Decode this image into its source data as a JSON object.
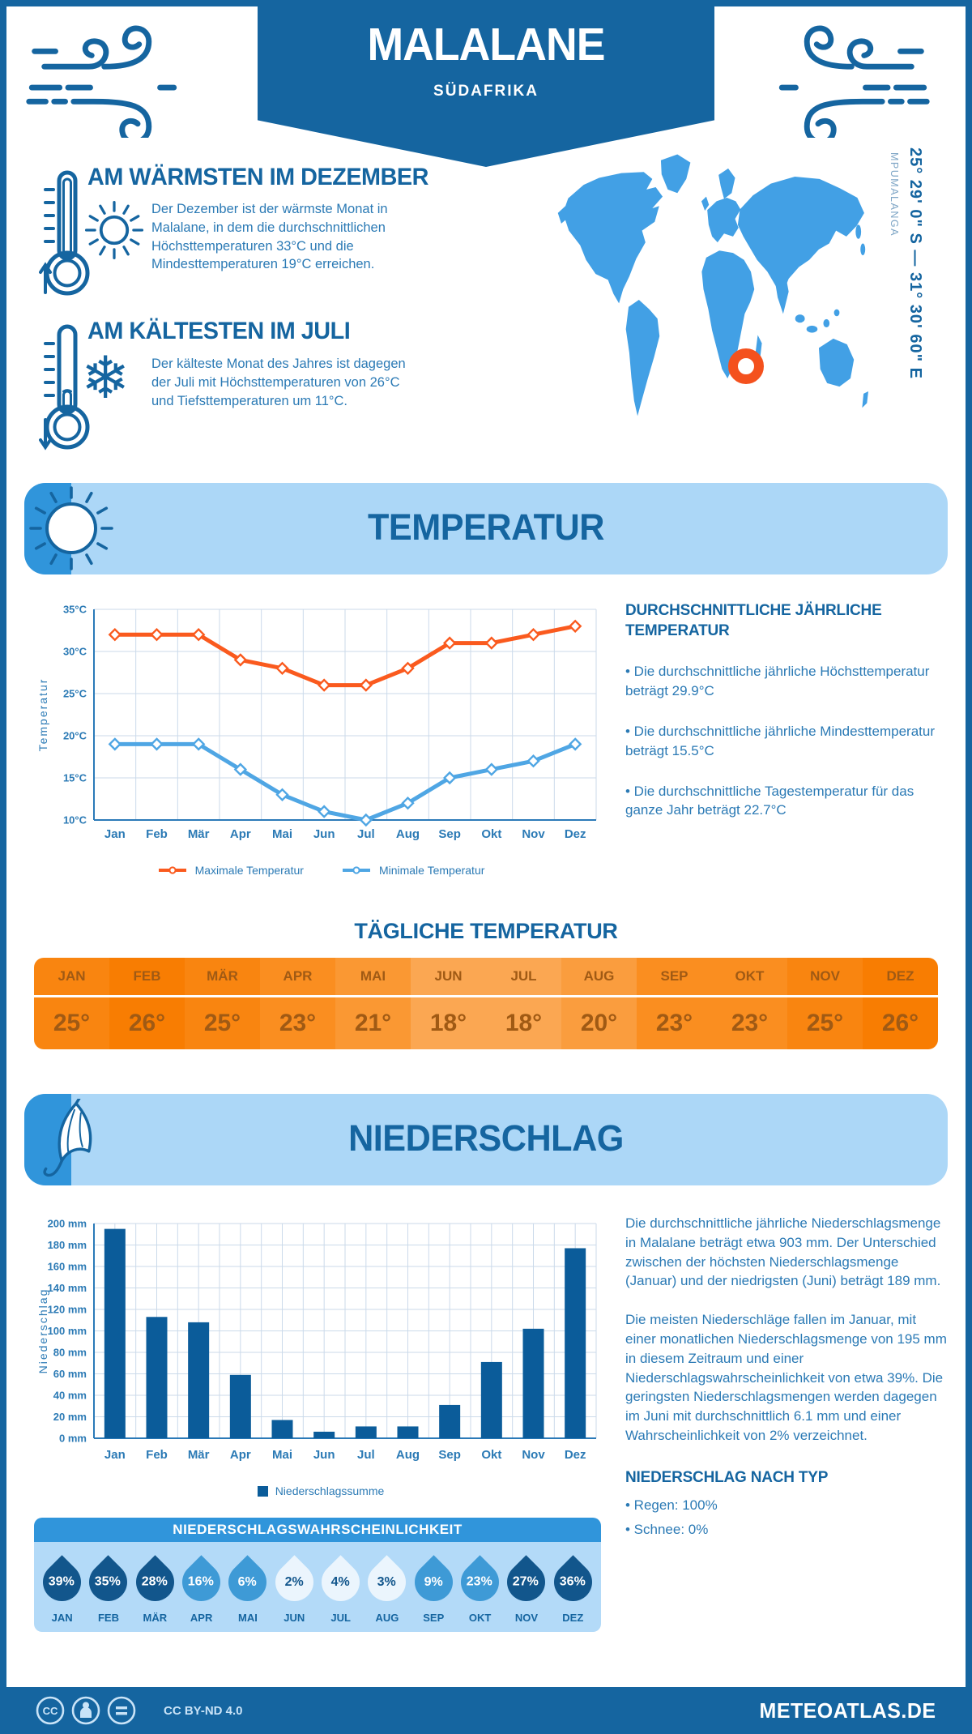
{
  "theme": {
    "navy": "#1565A0",
    "body_blue": "#2B7AB5",
    "light_blue": "#ACD7F7",
    "accent_blue": "#3095DB",
    "map_blue": "#42A0E5",
    "marker_orange": "#F4511E",
    "grid": "#CBDAEA",
    "axis": "#2B7AB8",
    "axis_text": "#2B7AB5",
    "max_line": "#FA5A1E",
    "min_line": "#4FA6E4",
    "bar_blue": "#0B5C9A"
  },
  "header": {
    "title": "MALALANE",
    "subtitle": "SÜDAFRIKA"
  },
  "location": {
    "coordinates": "25° 29' 0\" S — 31° 30' 60\" E",
    "region": "MPUMALANGA"
  },
  "icons": {
    "wind": "curly-wind-lines",
    "thermometer_up": "thermometer with up arrow",
    "thermometer_down": "thermometer with down arrow",
    "sun": "☀",
    "snowflake": "❄",
    "umbrella": "☂",
    "cc": "CC BY-ND badges"
  },
  "highlights": [
    {
      "title": "AM WÄRMSTEN IM DEZEMBER",
      "text": "Der Dezember ist der wärmste Monat in Malalane, in dem die durchschnittlichen Höchsttemperaturen 33°C und die Mindesttemperaturen 19°C erreichen."
    },
    {
      "title": "AM KÄLTESTEN IM JULI",
      "text": "Der kälteste Monat des Jahres ist dagegen der Juli mit Höchsttemperaturen von 26°C und Tiefsttemperaturen um 11°C."
    }
  ],
  "temperature": {
    "section_title": "TEMPERATUR",
    "stats_title": "DURCHSCHNITTLICHE JÄHRLICHE TEMPERATUR",
    "stats": [
      "• Die durchschnittliche jährliche Höchsttemperatur beträgt 29.9°C",
      "• Die durchschnittliche jährliche Mindesttemperatur beträgt 15.5°C",
      "• Die durchschnittliche Tagestemperatur für das ganze Jahr beträgt 22.7°C"
    ],
    "daily_title": "TÄGLICHE TEMPERATUR",
    "daily": {
      "months": [
        "JAN",
        "FEB",
        "MÄR",
        "APR",
        "MAI",
        "JUN",
        "JUL",
        "AUG",
        "SEP",
        "OKT",
        "NOV",
        "DEZ"
      ],
      "values": [
        "25°",
        "26°",
        "25°",
        "23°",
        "21°",
        "18°",
        "18°",
        "20°",
        "23°",
        "23°",
        "25°",
        "26°"
      ],
      "cell_colors": [
        "#F98510",
        "#F87D02",
        "#F98510",
        "#FA8E20",
        "#FA9833",
        "#FBA752",
        "#FBA752",
        "#FA9D3E",
        "#FA8E20",
        "#FA8E20",
        "#F98510",
        "#F87D02"
      ]
    }
  },
  "precipitation": {
    "section_title": "NIEDERSCHLAG",
    "paragraphs": [
      "Die durchschnittliche jährliche Niederschlagsmenge in Malalane beträgt etwa 903 mm. Der Unterschied zwischen der höchsten Niederschlagsmenge (Januar) und der niedrigsten (Juni) beträgt 189 mm.",
      "Die meisten Niederschläge fallen im Januar, mit einer monatlichen Niederschlagsmenge von 195 mm in diesem Zeitraum und einer Niederschlagswahrscheinlichkeit von etwa 39%. Die geringsten Niederschlagsmengen werden dagegen im Juni mit durchschnittlich 6.1 mm und einer Wahrscheinlichkeit von 2% verzeichnet."
    ],
    "type_title": "NIEDERSCHLAG NACH TYP",
    "types": [
      "• Regen: 100%",
      "• Schnee: 0%"
    ],
    "probability": {
      "title": "NIEDERSCHLAGSWAHRSCHEINLICHKEIT",
      "months": [
        "JAN",
        "FEB",
        "MÄR",
        "APR",
        "MAI",
        "JUN",
        "JUL",
        "AUG",
        "SEP",
        "OKT",
        "NOV",
        "DEZ"
      ],
      "values": [
        "39%",
        "35%",
        "28%",
        "16%",
        "6%",
        "2%",
        "4%",
        "3%",
        "9%",
        "23%",
        "27%",
        "36%"
      ],
      "drop_colors": [
        "#12568C",
        "#12568C",
        "#12568C",
        "#3E9AD6",
        "#3E9AD6",
        "#EBF5FD",
        "#EBF5FD",
        "#EBF5FD",
        "#3E9AD6",
        "#3E9AD6",
        "#12568C",
        "#12568C"
      ],
      "text_colors": [
        "#FFFFFF",
        "#FFFFFF",
        "#FFFFFF",
        "#FFFFFF",
        "#FFFFFF",
        "#12568C",
        "#12568C",
        "#12568C",
        "#FFFFFF",
        "#FFFFFF",
        "#FFFFFF",
        "#FFFFFF"
      ]
    }
  },
  "chart_data": [
    {
      "type": "line",
      "categories": [
        "Jan",
        "Feb",
        "Mär",
        "Apr",
        "Mai",
        "Jun",
        "Jul",
        "Aug",
        "Sep",
        "Okt",
        "Nov",
        "Dez"
      ],
      "series": [
        {
          "name": "Maximale Temperatur",
          "color": "#FA5A1E",
          "values": [
            32,
            32,
            32,
            29,
            28,
            26,
            26,
            28,
            31,
            31,
            32,
            33
          ]
        },
        {
          "name": "Minimale Temperatur",
          "color": "#4FA6E4",
          "values": [
            19,
            19,
            19,
            16,
            13,
            11,
            10,
            12,
            15,
            16,
            17,
            19
          ]
        }
      ],
      "xlabel": "",
      "ylabel": "Temperatur",
      "ylim": [
        10,
        35
      ],
      "ytick_step": 5,
      "ytick_suffix": "°C",
      "grid": true,
      "legend_position": "bottom",
      "marker": "diamond"
    },
    {
      "type": "bar",
      "categories": [
        "Jan",
        "Feb",
        "Mär",
        "Apr",
        "Mai",
        "Jun",
        "Jul",
        "Aug",
        "Sep",
        "Okt",
        "Nov",
        "Dez"
      ],
      "series": [
        {
          "name": "Niederschlagssumme",
          "color": "#0B5C9A",
          "values": [
            195,
            113,
            108,
            59,
            17,
            6.1,
            11,
            11,
            31,
            71,
            102,
            177
          ]
        }
      ],
      "xlabel": "",
      "ylabel": "Niederschlag",
      "ylim": [
        0,
        200
      ],
      "ytick_step": 20,
      "ytick_suffix": " mm",
      "grid": true,
      "legend_position": "bottom"
    }
  ],
  "footer": {
    "license": "CC BY-ND 4.0",
    "site": "METEOATLAS.DE"
  }
}
